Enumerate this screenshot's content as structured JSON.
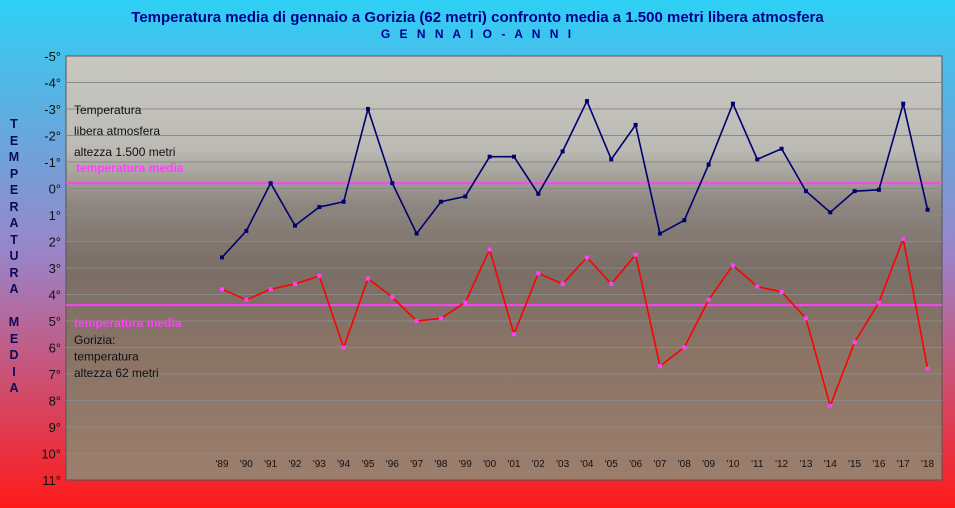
{
  "title": "Temperatura media di gennaio a Gorizia (62 metri) confronto media a 1.500 metri libera atmosfera",
  "subtitle": "G E N N A I O   -   A N N I",
  "ylabel_letters": [
    "T",
    "E",
    "M",
    "P",
    "E",
    "R",
    "A",
    "T",
    "U",
    "R",
    "A",
    "",
    "M",
    "E",
    "D",
    "I",
    "A"
  ],
  "annotations": {
    "upper_label": [
      "Temperatura",
      "libera atmosfera",
      "altezza 1.500 metri"
    ],
    "upper_mean_label": "temperatura media",
    "lower_mean_label": "temperatura media",
    "lower_label": [
      "Gorizia:",
      "temperatura",
      "altezza  62 metri"
    ]
  },
  "colors": {
    "background_top": "#2ed0f5",
    "background_bottom": "#ff1a1a",
    "series_upper": "#00006e",
    "series_lower": "#ff0000",
    "mean_line": "#ff40ff",
    "title": "#00008b"
  },
  "chart_data": {
    "type": "line",
    "title": "Temperatura media di gennaio a Gorizia (62 metri) confronto media a 1.500 metri libera atmosfera",
    "subtitle": "G E N N A I O   -   A N N I",
    "ylabel": "TEMPERATURA MEDIA",
    "y_axis_inverted": true,
    "ylim": [
      -5,
      11
    ],
    "y_ticks": [
      -5,
      -4,
      -3,
      -2,
      -1,
      0,
      1,
      2,
      3,
      4,
      5,
      6,
      7,
      8,
      9,
      10,
      11
    ],
    "y_tick_labels": [
      "-5°",
      "-4°",
      "-3°",
      "-2°",
      "-1°",
      "0°",
      "1°",
      "2°",
      "3°",
      "4°",
      "5°",
      "6°",
      "7°",
      "8°",
      "9°",
      "10°",
      "11°"
    ],
    "grid": "horizontal",
    "x": [
      "'89",
      "'90",
      "'91",
      "'92",
      "'93",
      "'94",
      "'95",
      "'96",
      "'97",
      "'98",
      "'99",
      "'00",
      "'01",
      "'02",
      "'03",
      "'04",
      "'05",
      "'06",
      "'07",
      "'08",
      "'09",
      "'10",
      "'11",
      "'12",
      "'13",
      "'14",
      "'15",
      "'16",
      "'17",
      "'18"
    ],
    "series": [
      {
        "values": [
          2.6,
          1.6,
          -0.2,
          1.4,
          0.7,
          0.5,
          -3.0,
          -0.2,
          1.7,
          0.5,
          0.3,
          -1.2,
          -1.2,
          0.2,
          -1.4,
          -3.3,
          -1.1,
          -2.4,
          1.7,
          1.2,
          -0.9,
          -3.2,
          -1.1,
          -1.5,
          0.1,
          0.9,
          0.1,
          0.05,
          -3.2,
          0.8
        ]
      },
      {
        "values": [
          3.8,
          4.2,
          3.8,
          3.6,
          3.3,
          6.0,
          3.4,
          4.1,
          5.0,
          4.9,
          4.3,
          2.3,
          5.5,
          3.2,
          3.6,
          2.6,
          3.6,
          2.5,
          6.7,
          6.0,
          4.2,
          2.9,
          3.7,
          3.9,
          4.9,
          8.2,
          5.8,
          4.3,
          1.9,
          6.8
        ]
      }
    ],
    "mean_lines": [
      {
        "value": -0.2,
        "label": "temperatura media"
      },
      {
        "value": 4.4,
        "label": "temperatura media"
      }
    ]
  }
}
